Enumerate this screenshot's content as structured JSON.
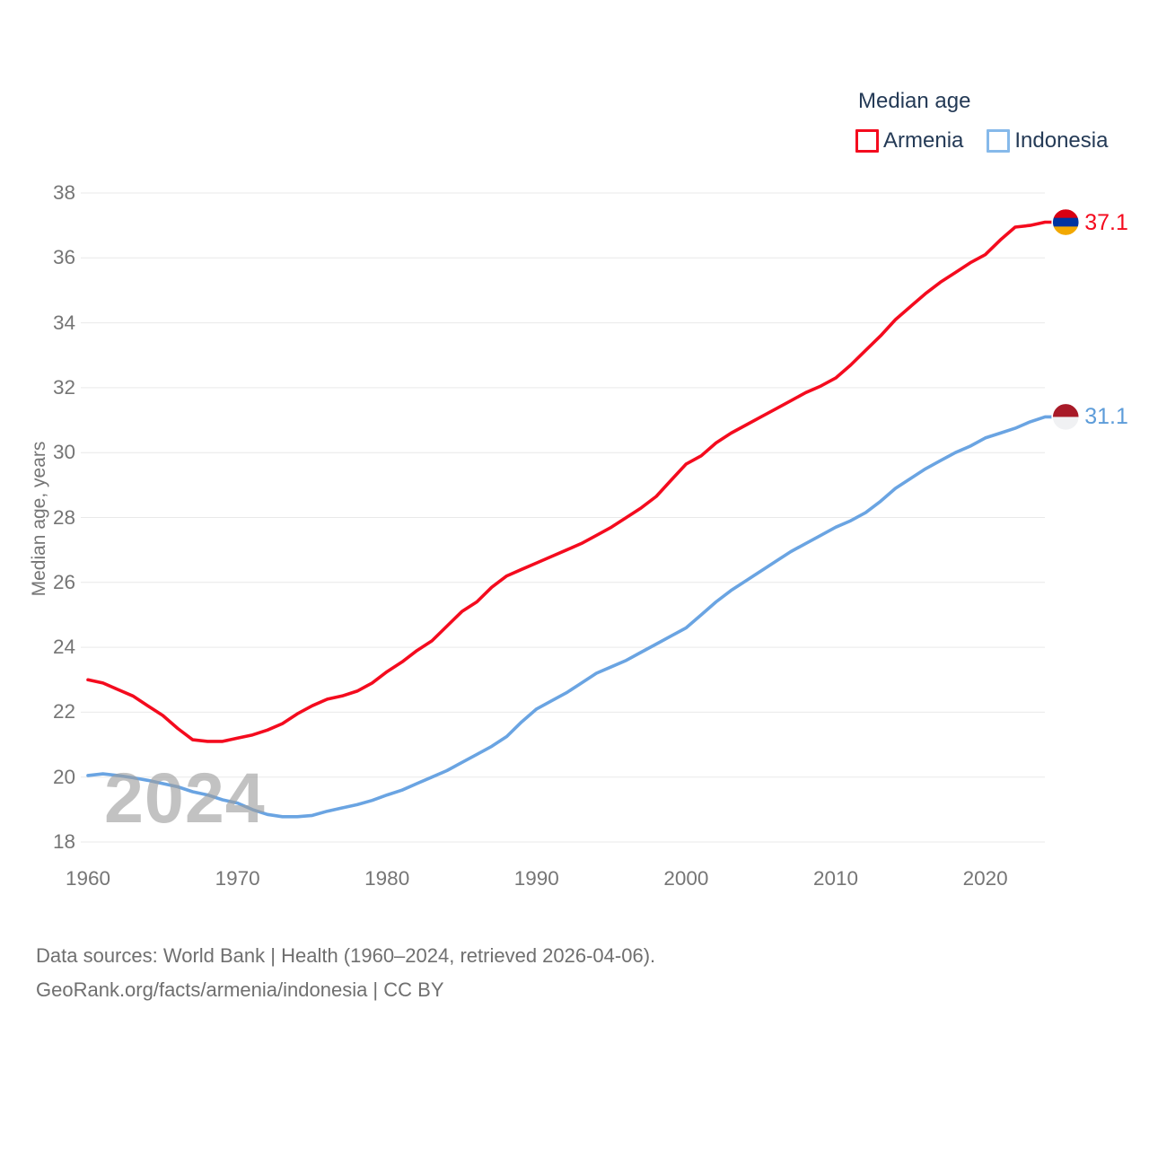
{
  "legend": {
    "title": "Median age",
    "series": [
      {
        "label": "Armenia",
        "swatch_color": "#f40b1e"
      },
      {
        "label": "Indonesia",
        "swatch_color": "#86b9ea"
      }
    ]
  },
  "watermark": "2024",
  "footer": {
    "line1": "Data sources: World Bank | Health (1960–2024, retrieved 2026-04-06).",
    "line2": "GeoRank.org/facts/armenia/indonesia | CC BY"
  },
  "chart_data": {
    "type": "line",
    "title": "Median age",
    "ylabel": "Median age, years",
    "xlim": [
      1960,
      2024
    ],
    "ylim": [
      18,
      38
    ],
    "x_ticks": [
      1960,
      1970,
      1980,
      1990,
      2000,
      2010,
      2020
    ],
    "y_ticks": [
      18,
      20,
      22,
      24,
      26,
      28,
      30,
      32,
      34,
      36,
      38
    ],
    "grid": "horizontal-only",
    "legend_position": "top-right",
    "years": [
      1960,
      1961,
      1962,
      1963,
      1964,
      1965,
      1966,
      1967,
      1968,
      1969,
      1970,
      1971,
      1972,
      1973,
      1974,
      1975,
      1976,
      1977,
      1978,
      1979,
      1980,
      1981,
      1982,
      1983,
      1984,
      1985,
      1986,
      1987,
      1988,
      1989,
      1990,
      1991,
      1992,
      1993,
      1994,
      1995,
      1996,
      1997,
      1998,
      1999,
      2000,
      2001,
      2002,
      2003,
      2004,
      2005,
      2006,
      2007,
      2008,
      2009,
      2010,
      2011,
      2012,
      2013,
      2014,
      2015,
      2016,
      2017,
      2018,
      2019,
      2020,
      2021,
      2022,
      2023,
      2024
    ],
    "series": [
      {
        "name": "Armenia",
        "color": "#f40b1e",
        "label_color": "#f40b1e",
        "end_label": "37.1",
        "flag": {
          "name": "armenia-flag",
          "colors": [
            "#d90012",
            "#0033a0",
            "#f2a800"
          ]
        },
        "values": [
          23.0,
          22.9,
          22.7,
          22.5,
          22.2,
          21.9,
          21.5,
          21.15,
          21.1,
          21.1,
          21.2,
          21.3,
          21.45,
          21.65,
          21.95,
          22.2,
          22.4,
          22.5,
          22.65,
          22.9,
          23.25,
          23.55,
          23.9,
          24.2,
          24.65,
          25.1,
          25.4,
          25.85,
          26.2,
          26.4,
          26.6,
          26.8,
          27.0,
          27.2,
          27.45,
          27.7,
          28.0,
          28.3,
          28.65,
          29.15,
          29.65,
          29.9,
          30.3,
          30.6,
          30.85,
          31.1,
          31.35,
          31.6,
          31.85,
          32.05,
          32.3,
          32.7,
          33.15,
          33.6,
          34.1,
          34.5,
          34.9,
          35.25,
          35.55,
          35.85,
          36.1,
          36.55,
          36.95,
          37.0,
          37.1
        ]
      },
      {
        "name": "Indonesia",
        "color": "#6aa4e2",
        "label_color": "#5d9cd9",
        "end_label": "31.1",
        "flag": {
          "name": "indonesia-flag",
          "colors": [
            "#a81a28",
            "#f0f1f3"
          ]
        },
        "values": [
          20.05,
          20.1,
          20.05,
          19.98,
          19.9,
          19.8,
          19.7,
          19.55,
          19.45,
          19.3,
          19.2,
          19.0,
          18.85,
          18.78,
          18.78,
          18.82,
          18.95,
          19.05,
          19.15,
          19.28,
          19.45,
          19.6,
          19.8,
          20.0,
          20.2,
          20.45,
          20.7,
          20.95,
          21.25,
          21.7,
          22.1,
          22.35,
          22.6,
          22.9,
          23.2,
          23.4,
          23.6,
          23.85,
          24.1,
          24.35,
          24.6,
          25.0,
          25.4,
          25.75,
          26.05,
          26.35,
          26.65,
          26.95,
          27.2,
          27.45,
          27.7,
          27.9,
          28.15,
          28.5,
          28.9,
          29.2,
          29.5,
          29.75,
          30.0,
          30.2,
          30.45,
          30.6,
          30.75,
          30.95,
          31.1
        ]
      }
    ]
  }
}
